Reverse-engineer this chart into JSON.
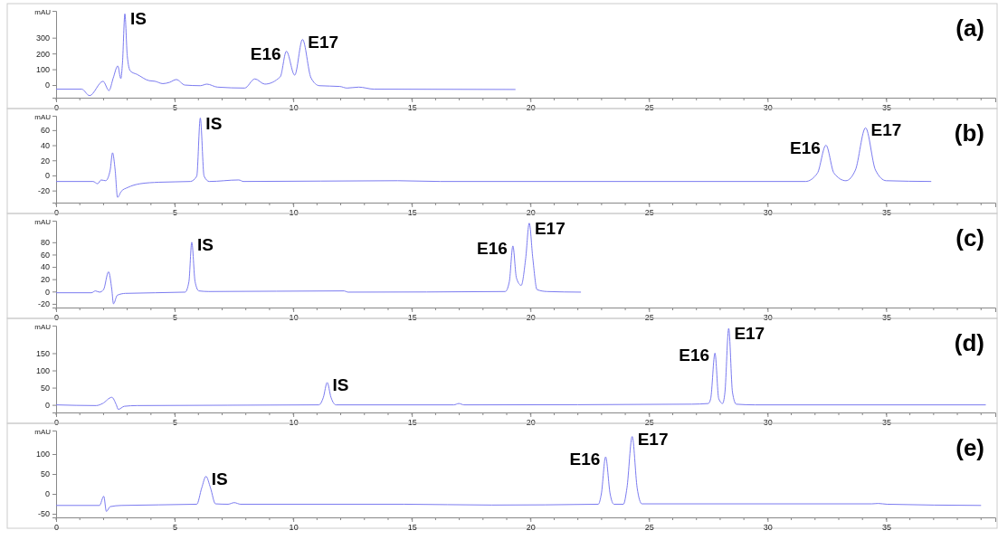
{
  "chart_data": [
    {
      "type": "line",
      "title": "(a)",
      "ylabel": "mAU",
      "xlim": [
        0,
        39.6
      ],
      "xticks": [
        0,
        5,
        10,
        15,
        20,
        25,
        30,
        35
      ],
      "ylim": [
        -80,
        470
      ],
      "yticks": [
        0,
        100,
        200,
        300
      ],
      "grid": false,
      "marker": "none",
      "line_style": "solid",
      "annotations": [
        {
          "text": "IS",
          "x": 2.9,
          "y": 451
        },
        {
          "text": "E16",
          "x": 9.71,
          "y": 214
        },
        {
          "text": "E17",
          "x": 10.39,
          "y": 289
        }
      ],
      "series": [
        {
          "color": "#7b7bf0",
          "x": [
            0,
            1.08,
            1.41,
            1.98,
            2.23,
            2.41,
            2.6,
            2.73,
            2.8,
            2.9,
            3.0,
            3.13,
            3.42,
            3.92,
            4.17,
            4.5,
            4.78,
            5.07,
            5.43,
            6.08,
            6.36,
            6.8,
            7.95,
            8.38,
            8.8,
            9.45,
            9.71,
            10.06,
            10.39,
            10.75,
            11.1,
            11.97,
            12.26,
            12.76,
            13.4,
            19.37
          ],
          "values": [
            -26,
            -26,
            -67,
            24,
            -35,
            45,
            121,
            41,
            143,
            451,
            186,
            89,
            67,
            28,
            24,
            9,
            17,
            35,
            0,
            -4,
            6,
            -13,
            -19,
            39,
            6,
            52,
            214,
            63,
            289,
            45,
            -4,
            -9,
            -19,
            -13,
            -26,
            -28
          ]
        }
      ]
    },
    {
      "type": "line",
      "title": "(b)",
      "ylabel": "mAU",
      "xlim": [
        0,
        39.6
      ],
      "xticks": [
        0,
        5,
        10,
        15,
        20,
        25,
        30,
        35
      ],
      "ylim": [
        -36,
        79
      ],
      "yticks": [
        -20,
        0,
        20,
        40,
        60
      ],
      "grid": false,
      "marker": "none",
      "line_style": "solid",
      "annotations": [
        {
          "text": "IS",
          "x": 6.08,
          "y": 76
        },
        {
          "text": "E16",
          "x": 32.46,
          "y": 40
        },
        {
          "text": "E17",
          "x": 34.13,
          "y": 63
        }
      ],
      "series": [
        {
          "color": "#7b7bf0",
          "x": [
            0,
            1.56,
            1.75,
            1.9,
            2.09,
            2.28,
            2.38,
            2.49,
            2.59,
            2.75,
            3.02,
            3.54,
            4.34,
            5.66,
            5.93,
            6.08,
            6.24,
            6.46,
            7.7,
            7.9,
            14.4,
            16.2,
            31.6,
            32.1,
            32.46,
            32.8,
            33.3,
            33.7,
            34.13,
            34.55,
            35.0,
            36.9
          ],
          "values": [
            -8,
            -8,
            -11,
            -6,
            -7,
            7,
            30,
            7,
            -29,
            -21,
            -16,
            -11,
            -9,
            -8,
            -1,
            76,
            -1,
            -8,
            -6,
            -8,
            -7,
            -8,
            -8,
            3,
            40,
            3,
            -7,
            7,
            63,
            7,
            -7,
            -8
          ]
        }
      ]
    },
    {
      "type": "line",
      "title": "(c)",
      "ylabel": "mAU",
      "xlim": [
        0,
        39.6
      ],
      "xticks": [
        0,
        5,
        10,
        15,
        20,
        25,
        30,
        35
      ],
      "ylim": [
        -26,
        115
      ],
      "yticks": [
        -20,
        0,
        20,
        40,
        60,
        80
      ],
      "grid": false,
      "marker": "none",
      "line_style": "solid",
      "annotations": [
        {
          "text": "IS",
          "x": 5.72,
          "y": 80
        },
        {
          "text": "E16",
          "x": 19.26,
          "y": 74
        },
        {
          "text": "E17",
          "x": 19.95,
          "y": 111
        }
      ],
      "series": [
        {
          "color": "#7b7bf0",
          "x": [
            0,
            1.49,
            1.66,
            1.83,
            2.0,
            2.21,
            2.35,
            2.42,
            2.58,
            2.92,
            5.44,
            5.6,
            5.72,
            5.86,
            6.02,
            6.44,
            12.15,
            12.3,
            18.94,
            19.11,
            19.26,
            19.41,
            19.61,
            19.8,
            19.95,
            20.1,
            20.28,
            20.7,
            22.13
          ],
          "values": [
            -2,
            -2,
            1,
            -1,
            3,
            32,
            3,
            -20,
            -6,
            -3,
            -1,
            16,
            80,
            16,
            1,
            0,
            1,
            -1,
            0,
            16,
            74,
            22,
            10,
            54,
            111,
            54,
            3,
            0,
            -1
          ]
        }
      ]
    },
    {
      "type": "line",
      "title": "(d)",
      "ylabel": "mAU",
      "xlim": [
        0,
        39.6
      ],
      "xticks": [
        0,
        5,
        10,
        15,
        20,
        25,
        30,
        35
      ],
      "ylim": [
        -22,
        230
      ],
      "yticks": [
        0,
        50,
        100,
        150
      ],
      "grid": false,
      "marker": "none",
      "line_style": "solid",
      "annotations": [
        {
          "text": "IS",
          "x": 11.43,
          "y": 65
        },
        {
          "text": "E16",
          "x": 27.78,
          "y": 150
        },
        {
          "text": "E17",
          "x": 28.36,
          "y": 222
        }
      ],
      "series": [
        {
          "color": "#7b7bf0",
          "x": [
            0,
            1.69,
            1.96,
            2.35,
            2.54,
            2.62,
            2.88,
            3.41,
            11.08,
            11.27,
            11.43,
            11.59,
            11.8,
            16.77,
            16.98,
            17.2,
            26.8,
            27.5,
            27.6,
            27.78,
            27.94,
            28.1,
            28.2,
            28.36,
            28.52,
            28.68,
            29.47,
            39.2
          ],
          "values": [
            0,
            -2,
            4,
            22,
            0,
            -13,
            -4,
            -2,
            0,
            22,
            65,
            22,
            0,
            0,
            4,
            0,
            2,
            4,
            18,
            150,
            18,
            4,
            36,
            222,
            36,
            2,
            0,
            0
          ]
        }
      ]
    },
    {
      "type": "line",
      "title": "(e)",
      "ylabel": "mAU",
      "xlim": [
        0,
        39.6
      ],
      "xticks": [
        0,
        5,
        10,
        15,
        20,
        25,
        30,
        35
      ],
      "ylim": [
        -59,
        159
      ],
      "yticks": [
        -50,
        0,
        50,
        100
      ],
      "grid": false,
      "marker": "none",
      "line_style": "solid",
      "annotations": [
        {
          "text": "IS",
          "x": 6.32,
          "y": 44
        },
        {
          "text": "E16",
          "x": 23.17,
          "y": 93
        },
        {
          "text": "E17",
          "x": 24.29,
          "y": 144
        }
      ],
      "series": [
        {
          "color": "#7b7bf0",
          "x": [
            0,
            1.83,
            2.01,
            2.12,
            2.28,
            2.75,
            5.93,
            6.14,
            6.32,
            6.51,
            6.72,
            7.25,
            7.51,
            7.78,
            14.66,
            18.36,
            22.86,
            22.99,
            23.17,
            23.36,
            23.52,
            23.92,
            24.07,
            24.29,
            24.5,
            24.7,
            34.4,
            34.66,
            35.03,
            39.0
          ],
          "values": [
            -29,
            -29,
            -6,
            -44,
            -32,
            -29,
            -26,
            15,
            44,
            15,
            -25,
            -26,
            -22,
            -26,
            -26,
            -28,
            -26,
            0,
            93,
            0,
            -26,
            -26,
            15,
            144,
            15,
            -25,
            -25,
            -24,
            -26,
            -29
          ]
        }
      ]
    }
  ]
}
